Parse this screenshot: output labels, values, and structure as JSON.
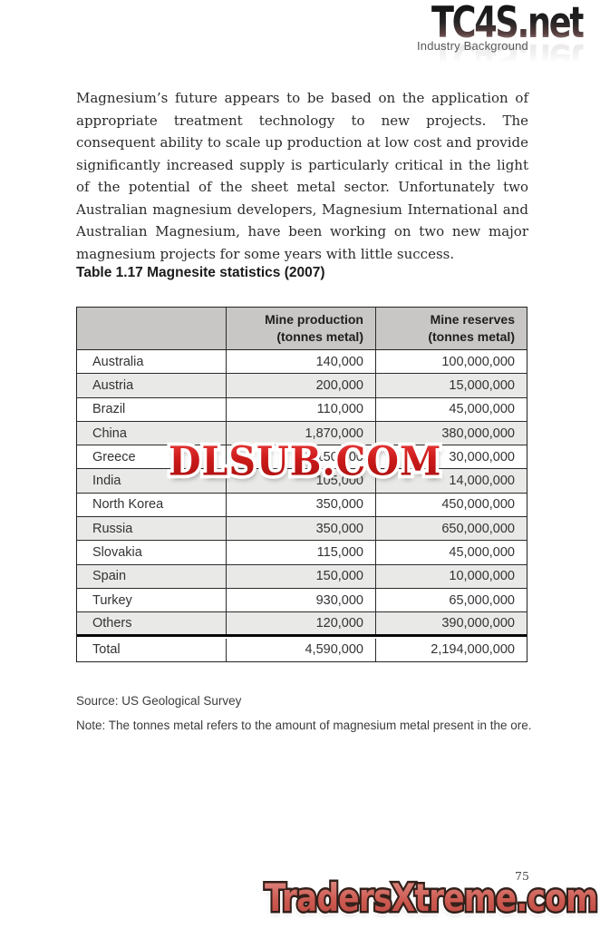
{
  "header": {
    "logo_text": "TC4S.net",
    "section_label": "Industry Background"
  },
  "body": {
    "paragraph": "Magnesium’s future appears to be based on the application of appropriate treatment technology to new projects. The consequent ability to scale up production at low cost and provide significantly increased supply is particularly critical in the light of the potential of the sheet metal sector. Unfortunately two Australian magnesium developers, Magnesium International and Australian Magnesium, have been working on two new major magnesium projects for some years with little success."
  },
  "table": {
    "title": "Table 1.17 Magnesite statistics (2007)",
    "col_production": {
      "line1": "Mine production",
      "line2": "(tonnes metal)"
    },
    "col_reserves": {
      "line1": "Mine reserves",
      "line2": "(tonnes metal)"
    },
    "rows": [
      {
        "country": "Australia",
        "production": "140,000",
        "reserves": "100,000,000"
      },
      {
        "country": "Austria",
        "production": "200,000",
        "reserves": "15,000,000"
      },
      {
        "country": "Brazil",
        "production": "110,000",
        "reserves": "45,000,000"
      },
      {
        "country": "China",
        "production": "1,870,000",
        "reserves": "380,000,000"
      },
      {
        "country": "Greece",
        "production": "150,000",
        "reserves": "30,000,000"
      },
      {
        "country": "India",
        "production": "105,000",
        "reserves": "14,000,000"
      },
      {
        "country": "North Korea",
        "production": "350,000",
        "reserves": "450,000,000"
      },
      {
        "country": "Russia",
        "production": "350,000",
        "reserves": "650,000,000"
      },
      {
        "country": "Slovakia",
        "production": "115,000",
        "reserves": "45,000,000"
      },
      {
        "country": "Spain",
        "production": "150,000",
        "reserves": "10,000,000"
      },
      {
        "country": "Turkey",
        "production": "930,000",
        "reserves": "65,000,000"
      },
      {
        "country": "Others",
        "production": "120,000",
        "reserves": "390,000,000"
      }
    ],
    "total": {
      "label": "Total",
      "production": "4,590,000",
      "reserves": "2,194,000,000"
    }
  },
  "footnotes": {
    "source": "Source: US Geological Survey",
    "note": "Note: The tonnes metal refers to the amount of magnesium metal present in the ore."
  },
  "watermark": {
    "text": "DLSUB.COM",
    "color": "#cc1a1a"
  },
  "footer": {
    "page_number": "75",
    "logo_text": "TradersXtreme.com",
    "logo_color": "#cd5b52"
  }
}
